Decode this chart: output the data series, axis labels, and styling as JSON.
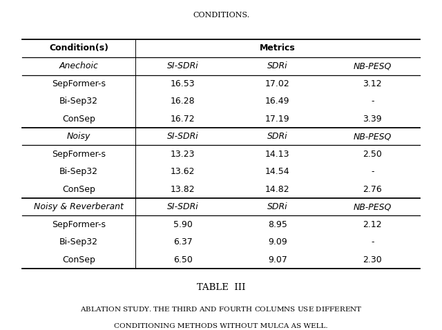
{
  "title_top": "CONDITIONS.",
  "table_caption_title": "TABLE  III",
  "table_caption_line2": "Ablation study. The third and fourth columns use different",
  "table_caption_line3": "conditioning methods without MulCA as well.",
  "sections": [
    {
      "label": "Anechoic",
      "subheader": [
        "SI-SDRi",
        "SDRi",
        "NB-PESQ"
      ],
      "rows": [
        [
          "SepFormer-s",
          "16.53",
          "17.02",
          "3.12"
        ],
        [
          "Bi-Sep32",
          "16.28",
          "16.49",
          "-"
        ],
        [
          "ConSep",
          "16.72",
          "17.19",
          "3.39"
        ]
      ]
    },
    {
      "label": "Noisy",
      "subheader": [
        "SI-SDRi",
        "SDRi",
        "NB-PESQ"
      ],
      "rows": [
        [
          "SepFormer-s",
          "13.23",
          "14.13",
          "2.50"
        ],
        [
          "Bi-Sep32",
          "13.62",
          "14.54",
          "-"
        ],
        [
          "ConSep",
          "13.82",
          "14.82",
          "2.76"
        ]
      ]
    },
    {
      "label": "Noisy & Reverberant",
      "subheader": [
        "SI-SDRi",
        "SDRi",
        "NB-PESQ"
      ],
      "rows": [
        [
          "SepFormer-s",
          "5.90",
          "8.95",
          "2.12"
        ],
        [
          "Bi-Sep32",
          "6.37",
          "9.09",
          "-"
        ],
        [
          "ConSep",
          "6.50",
          "9.07",
          "2.30"
        ]
      ]
    }
  ],
  "background_color": "#ffffff",
  "font_size": 9.0
}
